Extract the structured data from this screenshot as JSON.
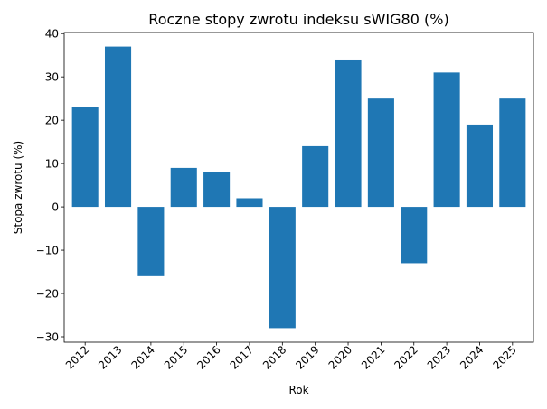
{
  "chart_data": {
    "type": "bar",
    "title": "Roczne stopy zwrotu indeksu sWIG80 (%)",
    "xlabel": "Rok",
    "ylabel": "Stopa zwrotu (%)",
    "categories": [
      "2012",
      "2013",
      "2014",
      "2015",
      "2016",
      "2017",
      "2018",
      "2019",
      "2020",
      "2021",
      "2022",
      "2023",
      "2024",
      "2025"
    ],
    "values": [
      23,
      37,
      -16,
      9,
      8,
      2,
      -28,
      14,
      34,
      25,
      -13,
      31,
      19,
      25
    ],
    "ylim": [
      -31.25,
      40.25
    ],
    "yticks": [
      -30,
      -20,
      -10,
      0,
      10,
      20,
      30,
      40
    ],
    "ytick_labels": [
      "−30",
      "−20",
      "−10",
      "0",
      "10",
      "20",
      "30",
      "40"
    ],
    "bar_color": "#1f77b4",
    "grid": false,
    "legend": "none"
  }
}
